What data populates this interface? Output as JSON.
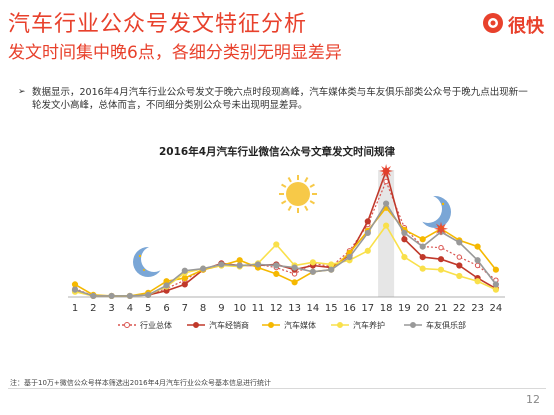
{
  "header": {
    "title": "汽车行业公众号发文特征分析",
    "subtitle": "发文时间集中晚6点，各细分类别无明显差异",
    "logo_text": "很快"
  },
  "bullet": {
    "text": "数据显示，2016年4月汽车行业公众号发文于晚六点时段现高峰，汽车媒体类与车友俱乐部类公众号于晚九点出现新一轮发文小高峰，总体而言，不同细分类别公众号未出现明显差异。"
  },
  "note": "注：基于10万+微信公众号样本筛选出2016年4月汽车行业公众号基本信息进行统计",
  "page_number": "12",
  "icons": [
    "moon-icon",
    "sun-icon",
    "moon-icon",
    "logo-icon"
  ],
  "colors": {
    "accent": "#e8412c",
    "series_total": "#d9534f",
    "series_dealer": "#c0392b",
    "series_media": "#f5b800",
    "series_maintenance": "#f9e04b",
    "series_club": "#999999",
    "highlight_band": "#e6e6e6"
  },
  "chart_data": {
    "type": "line",
    "title": "2016年4月汽车行业微信公众号文章发文时间规律",
    "x": [
      1,
      2,
      3,
      4,
      5,
      6,
      7,
      8,
      9,
      10,
      11,
      12,
      13,
      14,
      15,
      16,
      17,
      18,
      19,
      20,
      21,
      22,
      23,
      24
    ],
    "series": [
      {
        "name": "行业总体",
        "style": "dotted",
        "values": [
          0.8,
          0.1,
          0.1,
          0.1,
          0.2,
          0.8,
          1.6,
          2.7,
          3.1,
          3.0,
          3.1,
          2.8,
          2.2,
          3.2,
          2.9,
          4.4,
          6.9,
          11.0,
          6.6,
          4.8,
          4.7,
          3.8,
          3.0,
          1.6
        ]
      },
      {
        "name": "汽车经销商",
        "style": "solid",
        "values": [
          0.6,
          0.1,
          0.1,
          0.1,
          0.2,
          0.6,
          1.2,
          2.6,
          3.2,
          3.0,
          3.0,
          3.1,
          2.6,
          3.0,
          2.8,
          4.0,
          7.2,
          12.0,
          5.5,
          3.8,
          3.6,
          3.0,
          1.8,
          0.8
        ]
      },
      {
        "name": "汽车媒体",
        "style": "solid",
        "values": [
          1.2,
          0.2,
          0.1,
          0.1,
          0.4,
          1.5,
          1.8,
          2.6,
          3.0,
          3.5,
          2.8,
          2.2,
          1.4,
          2.4,
          2.6,
          4.2,
          6.3,
          8.5,
          6.4,
          5.5,
          6.5,
          5.4,
          4.8,
          2.6
        ]
      },
      {
        "name": "汽车养护",
        "style": "solid",
        "values": [
          0.5,
          0.1,
          0.1,
          0.1,
          0.2,
          1.0,
          2.3,
          2.7,
          3.0,
          2.9,
          3.2,
          5.0,
          3.0,
          3.3,
          3.1,
          3.5,
          4.4,
          6.8,
          3.8,
          2.7,
          2.6,
          2.0,
          1.5,
          0.7
        ]
      },
      {
        "name": "车友俱乐部",
        "style": "solid",
        "values": [
          0.7,
          0.1,
          0.1,
          0.1,
          0.2,
          1.1,
          2.5,
          2.7,
          3.1,
          3.0,
          3.1,
          3.0,
          2.8,
          2.4,
          2.6,
          3.8,
          6.1,
          8.9,
          6.1,
          4.8,
          6.2,
          5.2,
          3.5,
          1.2
        ]
      }
    ],
    "highlight_x": 18,
    "grid": false,
    "legend_position": "bottom"
  }
}
